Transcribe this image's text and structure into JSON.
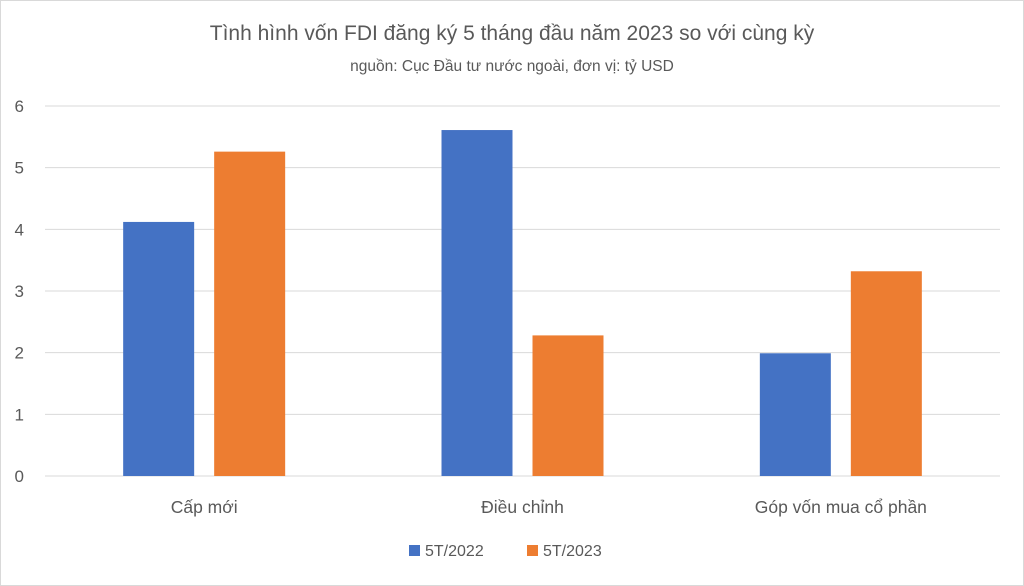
{
  "chart_data": {
    "type": "bar",
    "title": "Tình hình vốn FDI đăng ký 5 tháng đầu năm 2023 so với cùng kỳ",
    "subtitle": "nguồn: Cục Đầu tư nước ngoài, đơn vị: tỷ USD",
    "categories": [
      "Cấp mới",
      "Điều chỉnh",
      "Góp vốn mua cổ phần"
    ],
    "series": [
      {
        "name": "5T/2022",
        "color": "#4472c4",
        "values": [
          4.12,
          5.61,
          1.99
        ]
      },
      {
        "name": "5T/2023",
        "color": "#ed7d31",
        "values": [
          5.26,
          2.28,
          3.32
        ]
      }
    ],
    "ylim": [
      0,
      6
    ],
    "yticks": [
      "0",
      "1",
      "2",
      "3",
      "4",
      "5",
      "6"
    ],
    "grid": true,
    "legend_position": "bottom"
  }
}
